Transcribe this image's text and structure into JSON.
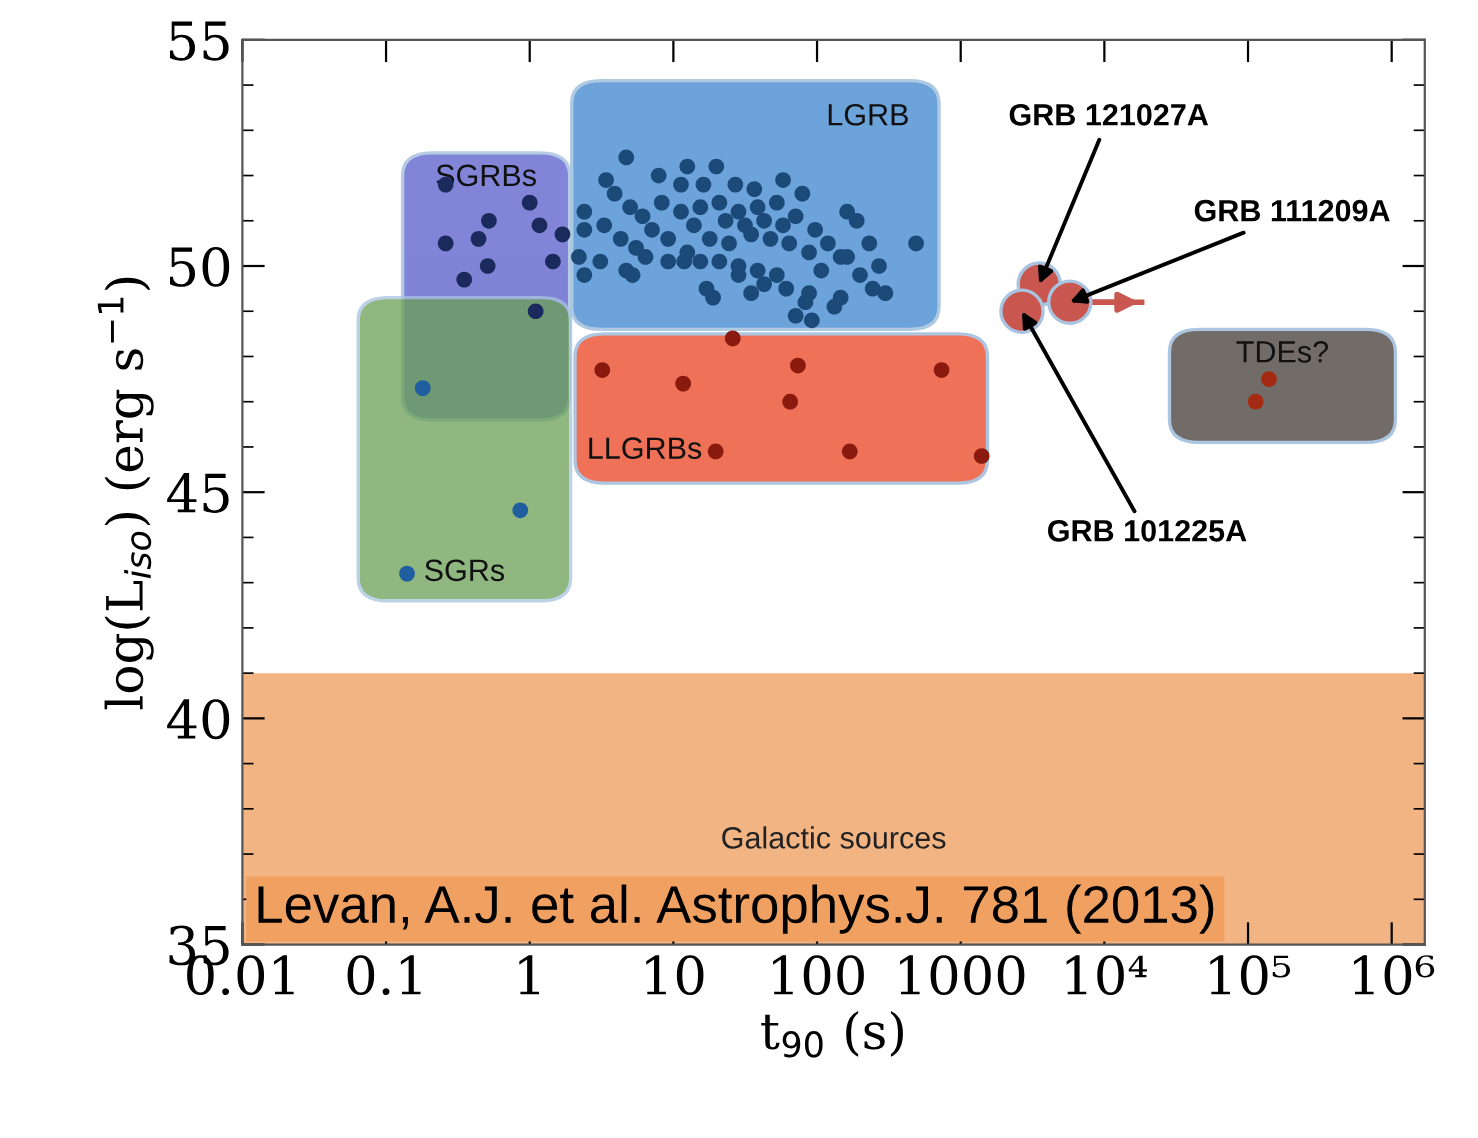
{
  "chart_data": {
    "type": "scatter",
    "xlabel": "t$_{90}$ (s)",
    "ylabel": "log(L$_{iso}$) (erg s$^{−1}$)",
    "log": "x",
    "marker": "circle",
    "grid": false,
    "xlim": [
      0.01,
      1700000
    ],
    "ylim": [
      35,
      55
    ],
    "xticks": [
      {
        "value": 0.01,
        "label": "0.01"
      },
      {
        "value": 0.1,
        "label": "0.1"
      },
      1,
      10,
      100,
      1000,
      {
        "value": 10000,
        "label": "10⁴"
      },
      {
        "value": 100000,
        "label": "10⁵"
      },
      {
        "value": 1000000,
        "label": "10⁶"
      }
    ],
    "yticks": [
      35,
      40,
      45,
      50,
      55
    ],
    "series": [
      {
        "name": "SGRBs",
        "color": "#1b2a5c",
        "x": [
          0.26,
          0.52,
          1.0,
          1.17,
          0.26,
          0.44,
          0.51,
          0.35,
          1.69,
          1.45,
          1.1
        ],
        "values": [
          51.8,
          51.0,
          51.4,
          50.9,
          50.5,
          50.6,
          50.0,
          49.7,
          50.7,
          50.1,
          49.0
        ]
      },
      {
        "name": "SGRs",
        "color": "#1f5f9f",
        "x": [
          0.18,
          0.86,
          0.14
        ],
        "values": [
          47.3,
          44.6,
          43.2
        ]
      },
      {
        "name": "LGRB",
        "color": "#1c4a78",
        "x": [
          4.7,
          3.4,
          3.9,
          7.9,
          12.5,
          19.9,
          11.3,
          16.2,
          27,
          36.6,
          58,
          79,
          2.4,
          2.4,
          5.0,
          3.3,
          6.1,
          8.3,
          11.3,
          15.4,
          20.9,
          28.4,
          38.6,
          52.5,
          71,
          97,
          162,
          189,
          231,
          489,
          2.2,
          3.1,
          4.7,
          6.4,
          9.2,
          12.5,
          17.9,
          24.4,
          34.8,
          47.4,
          64,
          88,
          119,
          146,
          199,
          270,
          244,
          299,
          2.4,
          5.2,
          15.4,
          20.9,
          28.4,
          38.6,
          42.8,
          52.5,
          61,
          28.4,
          17.0,
          18.9,
          34.8,
          88,
          83,
          71,
          146,
          132,
          7.1,
          4.3,
          5.5,
          13.9,
          23.1,
          31.5,
          42.8,
          58,
          107,
          162,
          9.2,
          11.9,
          92
        ],
        "values": [
          52.4,
          51.9,
          51.6,
          52.0,
          52.2,
          52.2,
          51.8,
          51.8,
          51.8,
          51.7,
          51.9,
          51.6,
          51.2,
          50.8,
          51.3,
          50.9,
          51.1,
          51.4,
          51.2,
          51.3,
          51.4,
          51.2,
          51.3,
          51.4,
          51.1,
          50.8,
          51.2,
          51.0,
          50.5,
          50.5,
          50.2,
          50.1,
          49.9,
          50.2,
          50.6,
          50.3,
          50.6,
          50.5,
          50.7,
          50.6,
          50.5,
          50.3,
          50.5,
          50.2,
          49.8,
          50.0,
          49.5,
          49.4,
          49.8,
          49.8,
          50.1,
          50.1,
          50.0,
          49.9,
          49.6,
          49.8,
          49.5,
          49.8,
          49.5,
          49.3,
          49.4,
          49.4,
          49.2,
          48.9,
          49.3,
          49.1,
          50.8,
          50.6,
          50.4,
          50.9,
          51.0,
          50.9,
          51.0,
          50.9,
          49.9,
          50.2,
          50.1,
          50.1,
          48.8
        ]
      },
      {
        "name": "LLGRBs",
        "color": "#8b1a0e",
        "x": [
          25.9,
          3.2,
          11.7,
          73.6,
          65,
          736,
          19.7,
          169,
          1400
        ],
        "values": [
          48.4,
          47.7,
          47.4,
          47.8,
          47.0,
          47.7,
          45.9,
          45.9,
          45.8
        ]
      },
      {
        "name": "TDEs?",
        "color": "#a52a12",
        "x": [
          140000,
          113000
        ],
        "values": [
          47.5,
          47.0
        ]
      },
      {
        "color": "#c9574f",
        "x": [
          3520,
          5750,
          2670
        ],
        "values": [
          49.6,
          49.2,
          49.0
        ],
        "xerrors": [
          null,
          [
            5750,
            19000
          ],
          null
        ]
      }
    ],
    "bands": [
      {
        "axis": "y",
        "from": 35,
        "to": 41,
        "label": "Galactic sources",
        "color": "#f2b483"
      }
    ],
    "annotations": [
      {
        "text": "GRB 121027A",
        "x": 3520,
        "y": 49.6
      },
      {
        "text": "GRB 111209A",
        "x": 5750,
        "y": 49.2
      },
      {
        "text": "GRB 101225A",
        "x": 2670,
        "y": 49.0
      },
      "Levan, A.J. et al. Astrophys.J. 781 (2013)"
    ]
  }
}
